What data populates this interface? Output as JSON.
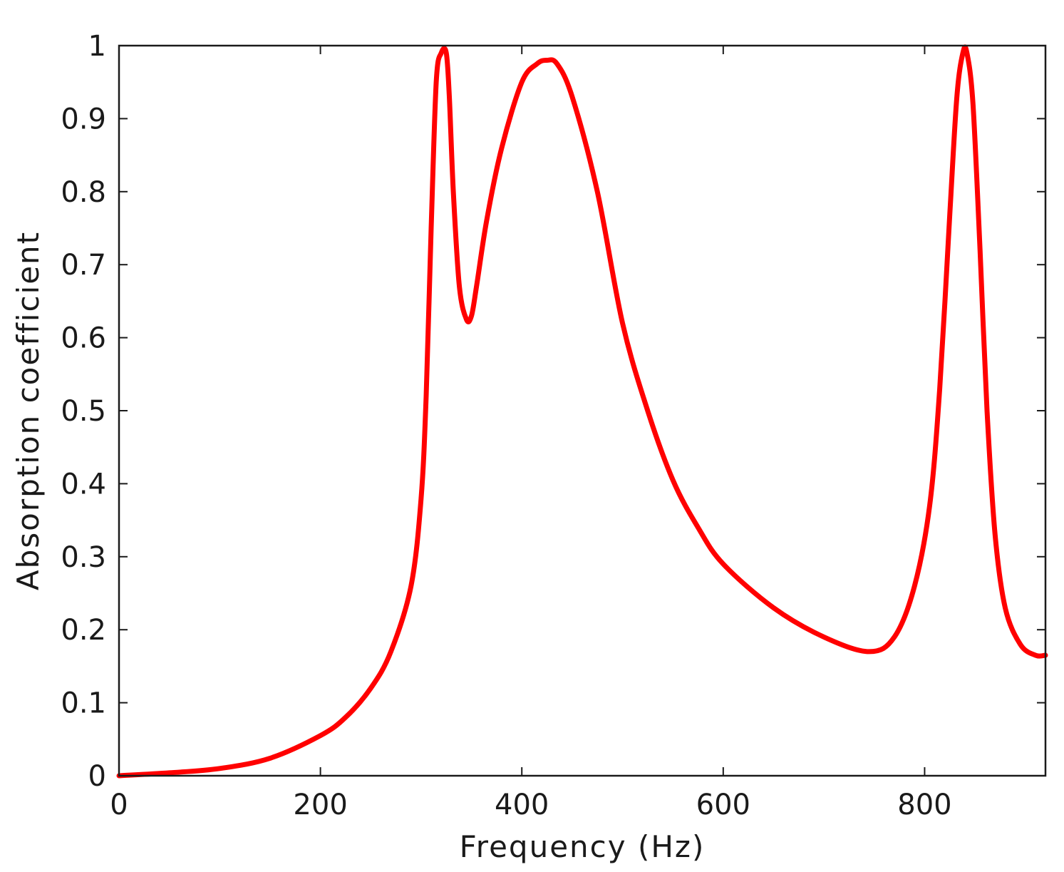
{
  "chart_data": {
    "type": "line",
    "title": "",
    "xlabel": "Frequency (Hz)",
    "ylabel": "Absorption coefficient",
    "xlim": [
      0,
      920
    ],
    "ylim": [
      0,
      1
    ],
    "xticks": [
      0,
      200,
      400,
      600,
      800
    ],
    "xtick_labels": [
      "0",
      "200",
      "400",
      "600",
      "800"
    ],
    "yticks": [
      0,
      0.1,
      0.2,
      0.3,
      0.4,
      0.5,
      0.6,
      0.7,
      0.8,
      0.9,
      1
    ],
    "ytick_labels": [
      "0",
      "0.1",
      "0.2",
      "0.3",
      "0.4",
      "0.5",
      "0.6",
      "0.7",
      "0.8",
      "0.9",
      "1"
    ],
    "grid": false,
    "series": [
      {
        "color": "#ff0000",
        "x": [
          0,
          50,
          100,
          150,
          200,
          225,
          250,
          270,
          290,
          300,
          305,
          310,
          315,
          320,
          325,
          328,
          332,
          338,
          345,
          350,
          355,
          365,
          380,
          400,
          415,
          425,
          435,
          450,
          475,
          500,
          525,
          550,
          575,
          600,
          650,
          700,
          745,
          770,
          790,
          805,
          815,
          825,
          832,
          838,
          842,
          848,
          855,
          862,
          870,
          880,
          895,
          910,
          920
        ],
        "y": [
          0.0,
          0.004,
          0.01,
          0.024,
          0.055,
          0.08,
          0.12,
          0.17,
          0.26,
          0.38,
          0.52,
          0.75,
          0.95,
          0.99,
          0.99,
          0.93,
          0.8,
          0.67,
          0.625,
          0.63,
          0.67,
          0.76,
          0.86,
          0.95,
          0.975,
          0.98,
          0.975,
          0.93,
          0.8,
          0.62,
          0.5,
          0.405,
          0.34,
          0.29,
          0.23,
          0.19,
          0.17,
          0.19,
          0.26,
          0.37,
          0.53,
          0.77,
          0.93,
          0.99,
          0.99,
          0.92,
          0.72,
          0.5,
          0.33,
          0.23,
          0.18,
          0.165,
          0.165
        ]
      }
    ]
  }
}
